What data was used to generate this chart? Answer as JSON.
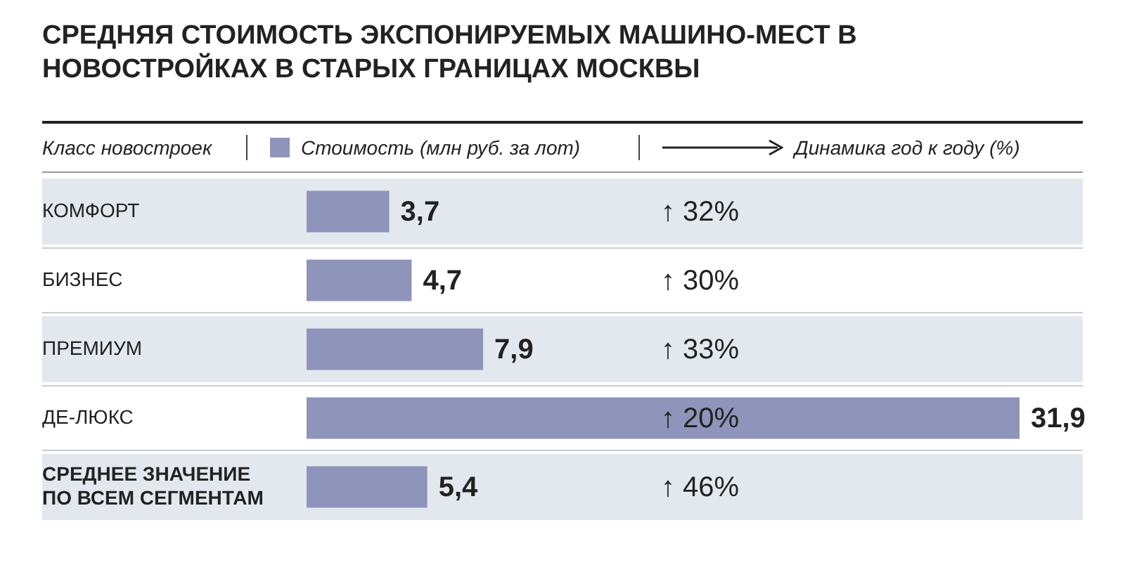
{
  "chart_data": {
    "type": "bar",
    "orientation": "horizontal",
    "title": "СРЕДНЯЯ СТОИМОСТЬ ЭКСПОНИРУЕМЫХ МАШИНО-МЕСТ В НОВОСТРОЙКАХ В СТАРЫХ ГРАНИЦАХ МОСКВЫ",
    "ylabel": "Класс новостроек",
    "categories": [
      "КОМФОРТ",
      "БИЗНЕС",
      "ПРЕМИУМ",
      "ДЕ-ЛЮКС",
      "СРЕДНЕЕ ЗНАЧЕНИЕ ПО ВСЕМ СЕГМЕНТАМ"
    ],
    "series": [
      {
        "name": "Стоимость (млн руб. за лот)",
        "color": "#8e94ba",
        "values": [
          3.7,
          4.7,
          7.9,
          31.9,
          5.4
        ],
        "value_labels": [
          "3,7",
          "4,7",
          "7,9",
          "31,9",
          "5,4"
        ]
      }
    ],
    "legend": "top",
    "annotations": [
      "Динамика год к году (%)",
      "↑ 32%",
      "↑ 30%",
      "↑ 33%",
      "↑ 20%",
      "↑ 46%"
    ]
  }
}
